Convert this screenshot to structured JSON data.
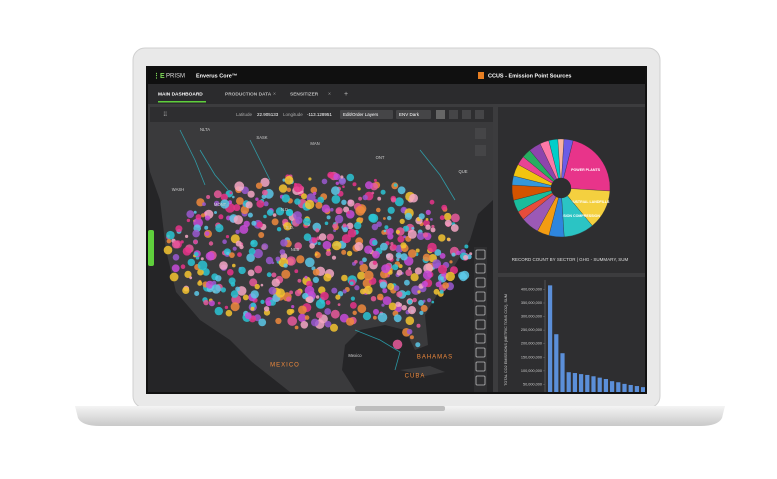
{
  "header": {
    "logo": "PRISM",
    "product": "Enverus Core™",
    "project": "CCUS - Emission Point Sources"
  },
  "tabs": [
    "MAIN DASHBOARD",
    "PRODUCTION DATA",
    "SENSITIZER"
  ],
  "add_tab": "+",
  "toolbar": {
    "latitude_label": "Latitude",
    "latitude": "22.905133",
    "longitude_label": "Longitude",
    "longitude": "-113.128951",
    "layers_button": "Edit/Order Layers",
    "theme": "ENV Dark"
  },
  "map_labels": [
    "NLTA",
    "SASK",
    "MAN",
    "ONT",
    "QUE",
    "WASH",
    "MONT",
    "N.D.",
    "S.D.",
    "NEB",
    "MEXICO",
    "Mexico",
    "BAHAMAS",
    "CUBA"
  ],
  "pie_chart": {
    "type": "pie",
    "title": "RECORD COUNT BY SECTOR | GHG - SUMMARY, SUM",
    "categories": [
      "POWER PLANTS",
      "INDUSTRIAL LANDFILLS",
      "TRANSMISSION COMPRESSION",
      null,
      null,
      null,
      null,
      null,
      null,
      null,
      null,
      null,
      null,
      null,
      null,
      null,
      null,
      null
    ],
    "values": [
      22,
      13,
      10,
      5,
      4,
      6,
      3,
      4,
      5,
      3,
      4,
      3,
      3,
      4,
      3,
      3,
      2,
      3
    ],
    "colors": [
      "#e8348a",
      "#f4d03f",
      "#2bc4c4",
      "#2e86de",
      "#f39c12",
      "#9b59b6",
      "#e74c3c",
      "#1abc9c",
      "#d35400",
      "#3498db",
      "#f1c40f",
      "#e84393",
      "#27ae60",
      "#8e44ad",
      "#fd79a8",
      "#00cec9",
      "#fab1a0",
      "#6c5ce7"
    ]
  },
  "bar_chart": {
    "type": "bar",
    "y_label": "TOTAL CO2 EMISSIONS (METRIC TONS CO2), SUM",
    "values": [
      415000000,
      235000000,
      165000000,
      95000000,
      92000000,
      88000000,
      85000000,
      80000000,
      75000000,
      70000000,
      62000000,
      58000000,
      52000000,
      48000000,
      44000000,
      40000000
    ],
    "color": "#5b8fd9",
    "ylim": [
      0,
      420000000
    ],
    "yticks": [
      {
        "value": 50000000,
        "label": "50,000,000"
      },
      {
        "value": 100000000,
        "label": "100,000,000"
      },
      {
        "value": 150000000,
        "label": "150,000,000"
      },
      {
        "value": 200000000,
        "label": "200,000,000"
      },
      {
        "value": 250000000,
        "label": "250,000,000"
      },
      {
        "value": 300000000,
        "label": "300,000,000"
      },
      {
        "value": 350000000,
        "label": "350,000,000"
      },
      {
        "value": 400000000,
        "label": "400,000,000"
      }
    ]
  }
}
